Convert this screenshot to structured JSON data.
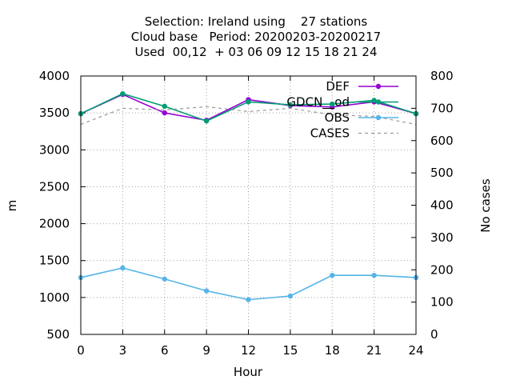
{
  "titles": [
    "Selection: Ireland using    27 stations",
    "Cloud base   Period: 20200203-20200217",
    "Used  00,12  + 03 06 09 12 15 18 21 24"
  ],
  "chart_data": {
    "type": "line",
    "xlabel": "Hour",
    "ylabel": "m",
    "y2label": "No cases",
    "x": [
      0,
      3,
      6,
      9,
      12,
      15,
      18,
      21,
      24
    ],
    "xticks": [
      0,
      3,
      6,
      9,
      12,
      15,
      18,
      21,
      24
    ],
    "xlim": [
      0,
      24
    ],
    "ylim": [
      500,
      4000
    ],
    "yticks": [
      500,
      1000,
      1500,
      2000,
      2500,
      3000,
      3500,
      4000
    ],
    "y2lim": [
      0,
      800
    ],
    "y2ticks": [
      0,
      100,
      200,
      300,
      400,
      500,
      600,
      700,
      800
    ],
    "grid": true,
    "legend_position": "top-right",
    "series": [
      {
        "name": "DEF",
        "axis": "y",
        "color": "#9400d3",
        "style": "line-points",
        "marker": "circle-filled",
        "values": [
          3490,
          3750,
          3500,
          3400,
          3680,
          3600,
          3580,
          3650,
          3490
        ]
      },
      {
        "name": "GDCN__od",
        "axis": "y",
        "color": "#009e73",
        "style": "line-points",
        "marker": "circle-filled",
        "values": [
          3490,
          3760,
          3590,
          3390,
          3650,
          3610,
          3620,
          3670,
          3490
        ]
      },
      {
        "name": "OBS",
        "axis": "y",
        "color": "#56b4e9",
        "style": "line-points",
        "marker": "circle-filled",
        "values": [
          1270,
          1400,
          1250,
          1090,
          970,
          1020,
          1300,
          1300,
          1270
        ]
      },
      {
        "name": "CASES",
        "axis": "y2",
        "color": "#999999",
        "style": "dashed",
        "values": [
          650,
          700,
          695,
          705,
          690,
          700,
          680,
          675,
          650
        ]
      }
    ]
  }
}
